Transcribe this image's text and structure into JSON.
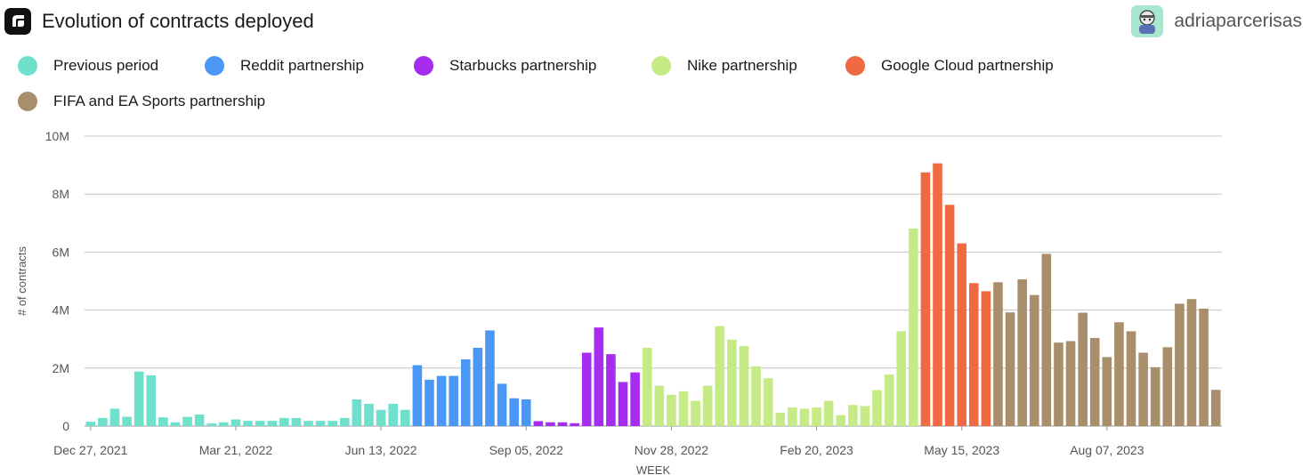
{
  "header": {
    "title": "Evolution of contracts deployed",
    "username": "adriaparcerisas"
  },
  "legend": [
    {
      "label": "Previous period",
      "color": "#6ee0cc"
    },
    {
      "label": "Reddit partnership",
      "color": "#4a97f5"
    },
    {
      "label": "Starbucks partnership",
      "color": "#a62cf0"
    },
    {
      "label": "Nike partnership",
      "color": "#c6ea86"
    },
    {
      "label": "Google Cloud partnership",
      "color": "#ef6a42"
    },
    {
      "label": "FIFA and EA Sports partnership",
      "color": "#a98e6c"
    }
  ],
  "chart_data": {
    "type": "bar",
    "xlabel": "WEEK",
    "ylabel": "# of contracts",
    "ylim": [
      0,
      10000000
    ],
    "yticks": [
      {
        "value": 0,
        "label": "0"
      },
      {
        "value": 2000000,
        "label": "2M"
      },
      {
        "value": 4000000,
        "label": "4M"
      },
      {
        "value": 6000000,
        "label": "6M"
      },
      {
        "value": 8000000,
        "label": "8M"
      },
      {
        "value": 10000000,
        "label": "10M"
      }
    ],
    "xticks": [
      {
        "index": 0,
        "label": "Dec 27, 2021"
      },
      {
        "index": 12,
        "label": "Mar 21, 2022"
      },
      {
        "index": 24,
        "label": "Jun 13, 2022"
      },
      {
        "index": 36,
        "label": "Sep 05, 2022"
      },
      {
        "index": 48,
        "label": "Nov 28, 2022"
      },
      {
        "index": 60,
        "label": "Feb 20, 2023"
      },
      {
        "index": 72,
        "label": "May 15, 2023"
      },
      {
        "index": 84,
        "label": "Aug 07, 2023"
      }
    ],
    "grid": true,
    "legend_position": "top-left",
    "series": [
      {
        "name": "Previous period",
        "color": "#6ee0cc",
        "start_index": 0,
        "values": [
          150000,
          280000,
          600000,
          320000,
          1880000,
          1750000,
          300000,
          130000,
          320000,
          400000,
          90000,
          130000,
          230000,
          180000,
          180000,
          180000,
          280000,
          280000,
          180000,
          180000,
          180000,
          280000,
          920000,
          770000,
          560000,
          770000,
          560000
        ]
      },
      {
        "name": "Reddit partnership",
        "color": "#4a97f5",
        "start_index": 27,
        "values": [
          2100000,
          1600000,
          1730000,
          1730000,
          2300000,
          2700000,
          3300000,
          1460000,
          960000,
          920000
        ]
      },
      {
        "name": "Starbucks partnership",
        "color": "#a62cf0",
        "start_index": 37,
        "values": [
          170000,
          130000,
          130000,
          100000,
          2530000,
          3400000,
          2480000,
          1520000,
          1850000
        ]
      },
      {
        "name": "Nike partnership",
        "color": "#c6ea86",
        "start_index": 46,
        "values": [
          2700000,
          1390000,
          1080000,
          1200000,
          870000,
          1390000,
          3450000,
          2980000,
          2760000,
          2060000,
          1650000,
          460000,
          640000,
          600000,
          640000,
          870000,
          380000,
          730000,
          690000,
          1240000,
          1780000,
          3270000,
          6810000
        ]
      },
      {
        "name": "Google Cloud partnership",
        "color": "#ef6a42",
        "start_index": 69,
        "values": [
          8750000,
          9060000,
          7630000,
          6300000,
          4930000,
          4650000
        ]
      },
      {
        "name": "FIFA and EA Sports partnership",
        "color": "#a98e6c",
        "start_index": 75,
        "values": [
          4960000,
          3920000,
          5060000,
          4520000,
          5940000,
          2880000,
          2930000,
          3910000,
          3040000,
          2380000,
          3580000,
          3270000,
          2530000,
          2030000,
          2720000,
          4220000,
          4380000,
          4050000,
          1250000
        ]
      }
    ]
  }
}
